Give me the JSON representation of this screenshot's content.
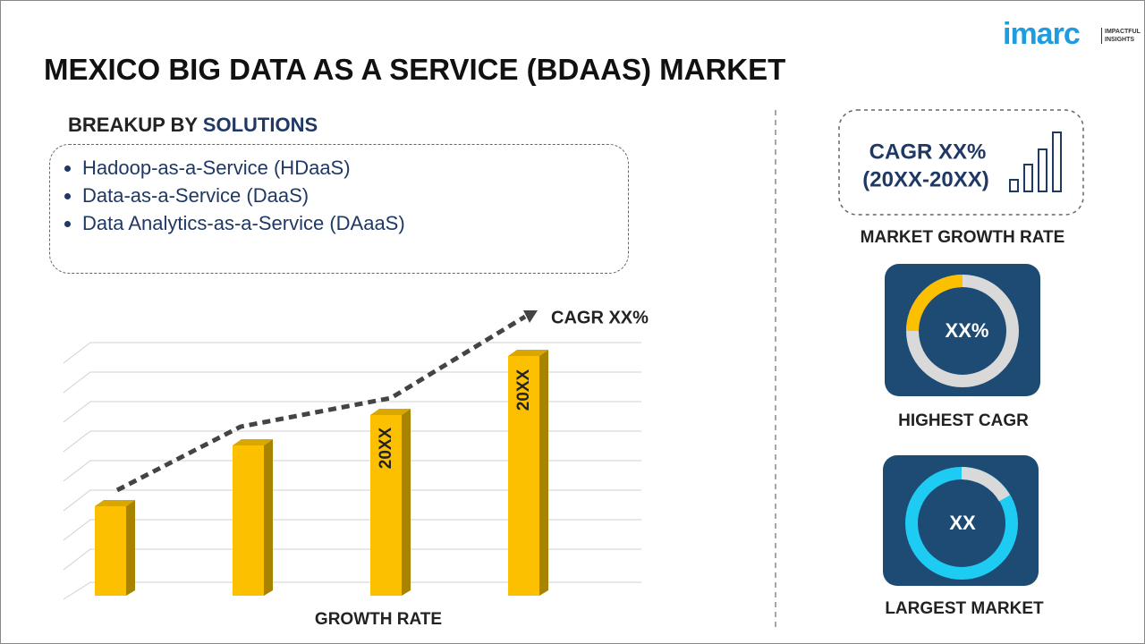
{
  "logo": {
    "brand": "imarc",
    "tagline_1": "IMPACTFUL",
    "tagline_2": "INSIGHTS"
  },
  "title": "MEXICO BIG DATA AS A SERVICE (BDAAS) MARKET",
  "breakup": {
    "prefix": "BREAKUP BY",
    "highlight": "SOLUTIONS",
    "items": [
      "Hadoop-as-a-Service (HDaaS)",
      "Data-as-a-Service (DaaS)",
      "Data Analytics-as-a-Service (DAaaS)"
    ]
  },
  "growth_chart": {
    "trend_label": "CAGR XX%",
    "bar_labels": [
      "20XX",
      "20XX"
    ],
    "axis_label": "GROWTH RATE"
  },
  "market_growth": {
    "line_1": "CAGR XX%",
    "line_2": "(20XX-20XX)",
    "caption": "MARKET GROWTH RATE"
  },
  "highest_cagr": {
    "value": "XX%",
    "caption": "HIGHEST CAGR"
  },
  "largest_market": {
    "value": "XX",
    "caption": "LARGEST MARKET"
  }
}
